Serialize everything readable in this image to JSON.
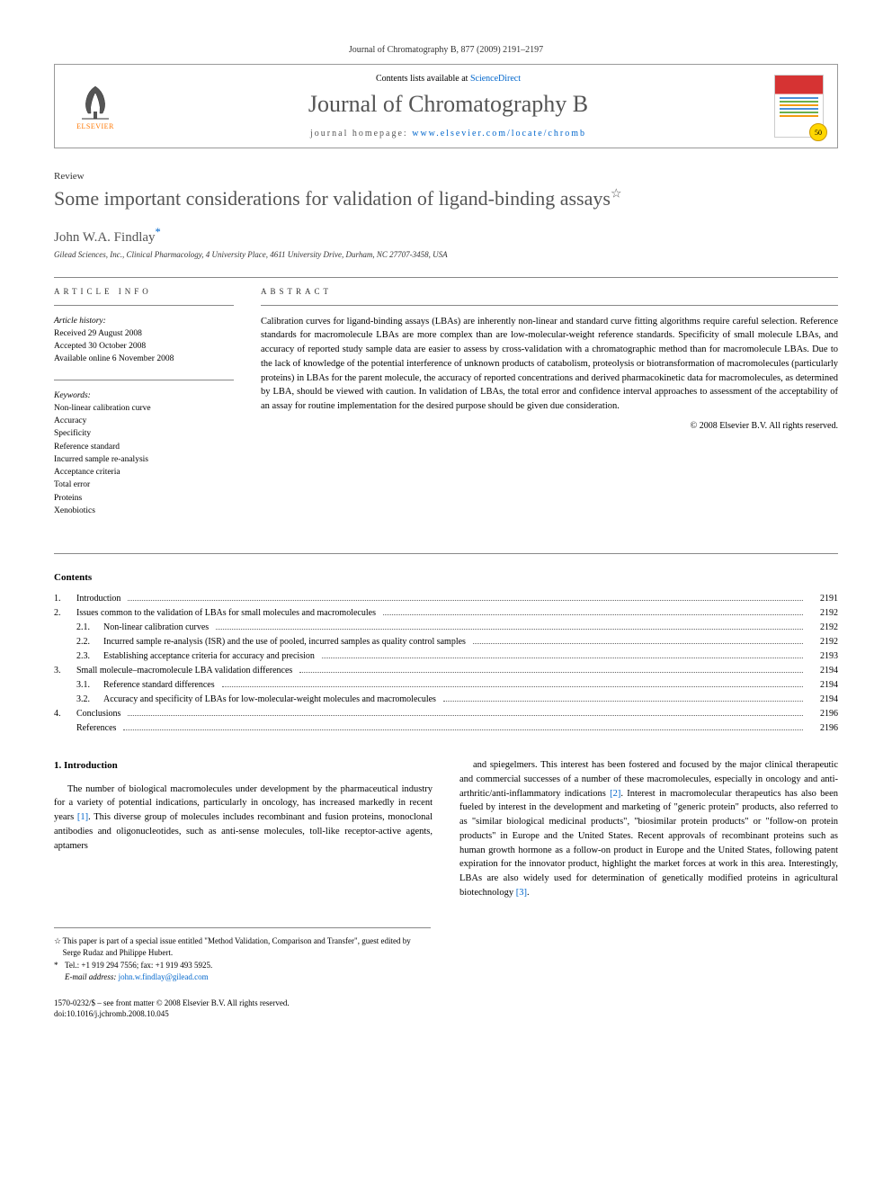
{
  "journal_ref": "Journal of Chromatography B, 877 (2009) 2191–2197",
  "header": {
    "contents_prefix": "Contents lists available at ",
    "contents_link": "ScienceDirect",
    "journal_name": "Journal of Chromatography B",
    "homepage_prefix": "journal homepage: ",
    "homepage_url": "www.elsevier.com/locate/chromb",
    "publisher": "ELSEVIER",
    "badge": "50"
  },
  "article": {
    "type": "Review",
    "title": "Some important considerations for validation of ligand-binding assays",
    "star": "☆",
    "author": "John W.A. Findlay",
    "author_marker": "*",
    "affiliation": "Gilead Sciences, Inc., Clinical Pharmacology, 4 University Place, 4611 University Drive, Durham, NC 27707-3458, USA"
  },
  "info": {
    "heading": "ARTICLE INFO",
    "history_label": "Article history:",
    "received": "Received 29 August 2008",
    "accepted": "Accepted 30 October 2008",
    "online": "Available online 6 November 2008",
    "keywords_label": "Keywords:",
    "keywords": [
      "Non-linear calibration curve",
      "Accuracy",
      "Specificity",
      "Reference standard",
      "Incurred sample re-analysis",
      "Acceptance criteria",
      "Total error",
      "Proteins",
      "Xenobiotics"
    ]
  },
  "abstract": {
    "heading": "ABSTRACT",
    "text": "Calibration curves for ligand-binding assays (LBAs) are inherently non-linear and standard curve fitting algorithms require careful selection. Reference standards for macromolecule LBAs are more complex than are low-molecular-weight reference standards. Specificity of small molecule LBAs, and accuracy of reported study sample data are easier to assess by cross-validation with a chromatographic method than for macromolecule LBAs. Due to the lack of knowledge of the potential interference of unknown products of catabolism, proteolysis or biotransformation of macromolecules (particularly proteins) in LBAs for the parent molecule, the accuracy of reported concentrations and derived pharmacokinetic data for macromolecules, as determined by LBA, should be viewed with caution. In validation of LBAs, the total error and confidence interval approaches to assessment of the acceptability of an assay for routine implementation for the desired purpose should be given due consideration.",
    "copyright": "© 2008 Elsevier B.V. All rights reserved."
  },
  "contents": {
    "heading": "Contents",
    "items": [
      {
        "num": "1.",
        "label": "Introduction",
        "page": "2191"
      },
      {
        "num": "2.",
        "label": "Issues common to the validation of LBAs for small molecules and macromolecules",
        "page": "2192"
      },
      {
        "sub": "2.1.",
        "label": "Non-linear calibration curves",
        "page": "2192"
      },
      {
        "sub": "2.2.",
        "label": "Incurred sample re-analysis (ISR) and the use of pooled, incurred samples as quality control samples",
        "page": "2192"
      },
      {
        "sub": "2.3.",
        "label": "Establishing acceptance criteria for accuracy and precision",
        "page": "2193"
      },
      {
        "num": "3.",
        "label": "Small molecule–macromolecule LBA validation differences",
        "page": "2194"
      },
      {
        "sub": "3.1.",
        "label": "Reference standard differences",
        "page": "2194"
      },
      {
        "sub": "3.2.",
        "label": "Accuracy and specificity of LBAs for low-molecular-weight molecules and macromolecules",
        "page": "2194"
      },
      {
        "num": "4.",
        "label": "Conclusions",
        "page": "2196"
      },
      {
        "num": "",
        "label": "References",
        "page": "2196"
      }
    ]
  },
  "body": {
    "section_heading": "1. Introduction",
    "col1_p1": "The number of biological macromolecules under development by the pharmaceutical industry for a variety of potential indications, particularly in oncology, has increased markedly in recent years [1]. This diverse group of molecules includes recombinant and fusion proteins, monoclonal antibodies and oligonucleotides, such as anti-sense molecules, toll-like receptor-active agents, aptamers",
    "col2_p1": "and spiegelmers. This interest has been fostered and focused by the major clinical therapeutic and commercial successes of a number of these macromolecules, especially in oncology and anti-arthritic/anti-inflammatory indications [2]. Interest in macromolecular therapeutics has also been fueled by interest in the development and marketing of \"generic protein\" products, also referred to as \"similar biological medicinal products\", \"biosimilar protein products\" or \"follow-on protein products\" in Europe and the United States. Recent approvals of recombinant proteins such as human growth hormone as a follow-on product in Europe and the United States, following patent expiration for the innovator product, highlight the market forces at work in this area. Interestingly, LBAs are also widely used for determination of genetically modified proteins in agricultural biotechnology [3]."
  },
  "footnotes": {
    "note1_marker": "☆",
    "note1_text": "This paper is part of a special issue entitled \"Method Validation, Comparison and Transfer\", guest edited by Serge Rudaz and Philippe Hubert.",
    "note2_marker": "*",
    "note2_text": "Tel.: +1 919 294 7556; fax: +1 919 493 5925.",
    "email_label": "E-mail address:",
    "email": "john.w.findlay@gilead.com"
  },
  "footer": {
    "issn": "1570-0232/$ – see front matter © 2008 Elsevier B.V. All rights reserved.",
    "doi": "doi:10.1016/j.jchromb.2008.10.045"
  },
  "colors": {
    "link": "#0066cc",
    "elsevier_orange": "#ff7700",
    "heading_gray": "#555555",
    "cover_red": "#d63333"
  }
}
